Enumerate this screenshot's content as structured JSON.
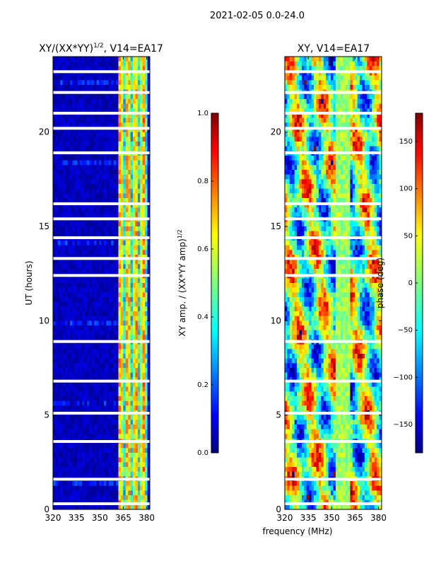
{
  "figure": {
    "suptitle": "2021-02-05 0.0-24.0",
    "shared_xlabel": "frequency (MHz)"
  },
  "colors": {
    "jet": [
      "#00007f",
      "#0000ff",
      "#007fff",
      "#00ffff",
      "#7fff7f",
      "#ffff00",
      "#ff7f00",
      "#ff0000",
      "#7f0000"
    ]
  },
  "chart_data": [
    {
      "type": "heatmap",
      "title_main": "XY/(XX*YY)",
      "title_sup": "1/2",
      "title_tail": ", V14=EA17",
      "ylabel": "UT (hours)",
      "xlabel": "",
      "xlim": [
        320,
        382
      ],
      "ylim": [
        0,
        24
      ],
      "xticks": [
        320,
        335,
        350,
        365,
        380
      ],
      "yticks": [
        0,
        5,
        10,
        15,
        20
      ],
      "band_x": [
        342,
        362,
        381
      ],
      "gaps_hours": [
        0.3,
        1.6,
        3.6,
        5.1,
        6.8,
        8.9,
        12.4,
        13.3,
        14.4,
        15.4,
        16.2,
        18.9,
        20.2,
        21.0,
        22.1,
        23.2
      ],
      "colorbar": {
        "label_main": "XY amp. / (XX*YY amp)",
        "label_sup": "1/2",
        "range": [
          0,
          1
        ],
        "ticks": [
          "0.0",
          "0.2",
          "0.4",
          "0.6",
          "0.8",
          "1.0"
        ]
      }
    },
    {
      "type": "heatmap",
      "title": "XY, V14=EA17",
      "ylabel": "",
      "xlabel": "frequency (MHz)",
      "xlim": [
        320,
        382
      ],
      "ylim": [
        0,
        24
      ],
      "xticks": [
        320,
        335,
        350,
        365,
        380
      ],
      "yticks": [
        0,
        5,
        10,
        15,
        20
      ],
      "gaps_hours": [
        0.3,
        1.6,
        3.6,
        5.1,
        6.8,
        8.9,
        12.4,
        13.3,
        14.4,
        15.4,
        16.2,
        18.9,
        20.2,
        21.0,
        22.1,
        23.2
      ],
      "colorbar": {
        "label": "phase (deg)",
        "range": [
          -180,
          180
        ],
        "ticks": [
          "150",
          "100",
          "50",
          "0",
          "−50",
          "−100",
          "−150"
        ],
        "tick_values": [
          150,
          100,
          50,
          0,
          -50,
          -100,
          -150
        ]
      }
    }
  ]
}
